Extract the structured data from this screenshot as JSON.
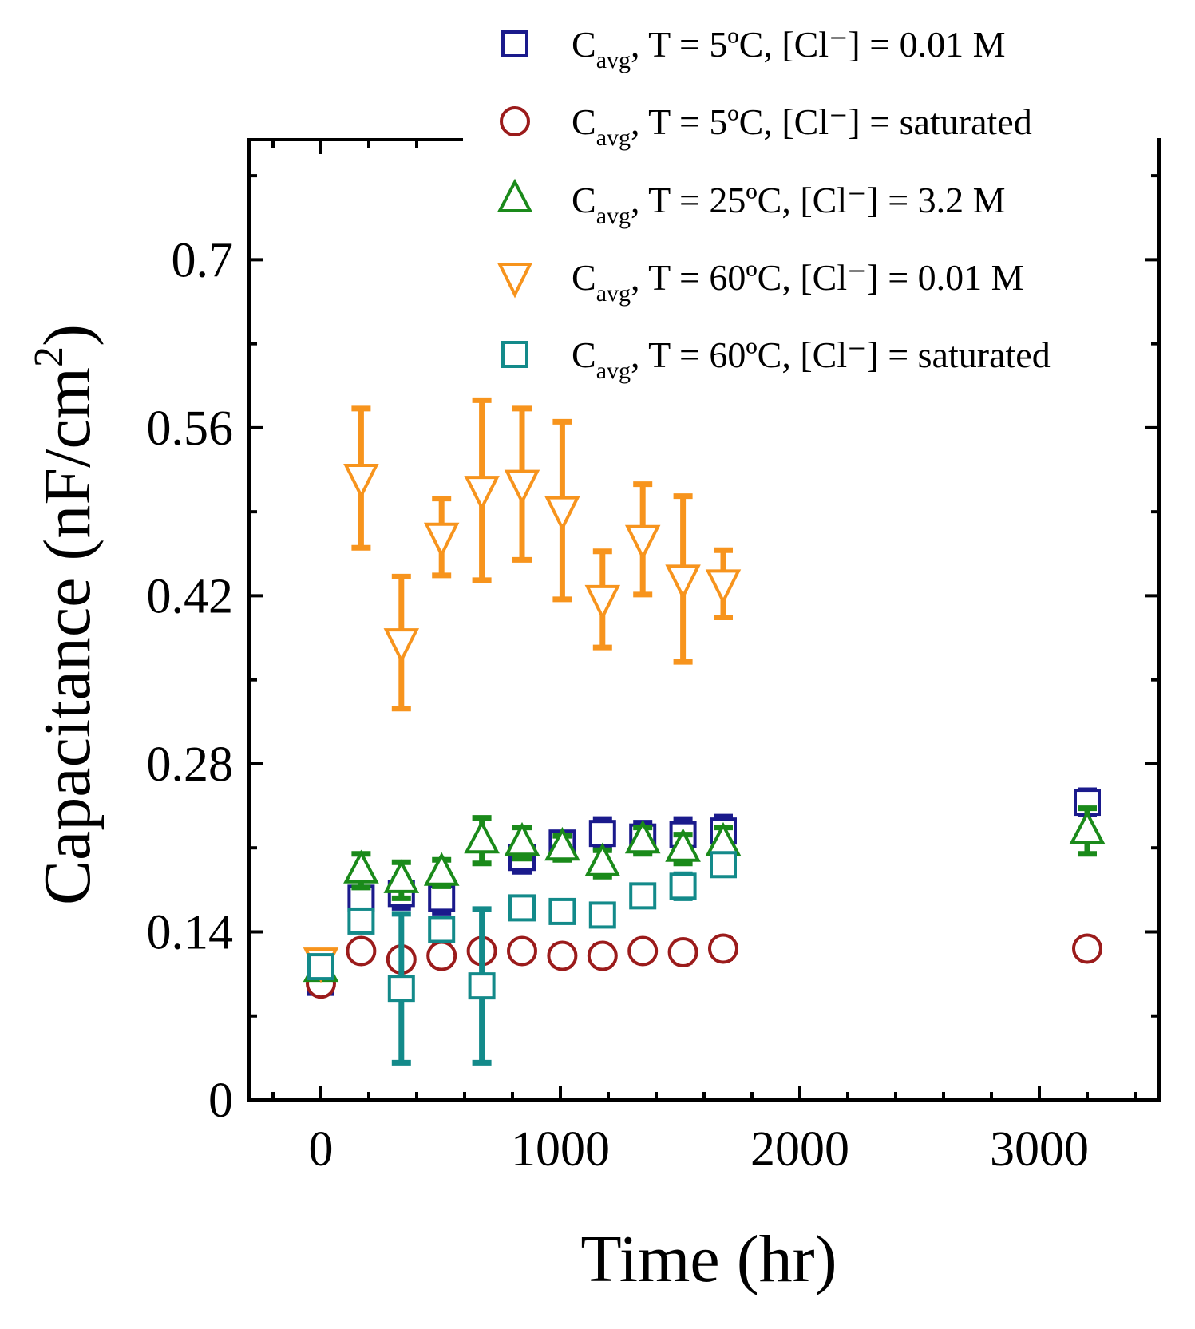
{
  "chart_data": {
    "type": "scatter",
    "xlabel": "Time (hr)",
    "ylabel": "Capacitance (nF/cm²)",
    "ylabel_parts": {
      "main": "Capacitance (nF/cm",
      "sup": "2",
      "end": ")"
    },
    "xlim": [
      -300,
      3500
    ],
    "ylim": [
      0,
      0.8
    ],
    "xticks": [
      0,
      1000,
      2000,
      3000
    ],
    "xtick_labels": [
      "0",
      "1000",
      "2000",
      "3000"
    ],
    "yticks": [
      0,
      0.14,
      0.28,
      0.42,
      0.56,
      0.7
    ],
    "ytick_labels": [
      "0",
      "0.14",
      "0.28",
      "0.42",
      "0.56",
      "0.7"
    ],
    "grid": false,
    "legend_position": "top-right",
    "series": [
      {
        "name": "Cavg, T = 5ºC, [Cl⁻] = 0.01 M",
        "legend": {
          "pre": "C",
          "sub": "avg",
          "post": ", T = 5ºC, [Cl⁻] = 0.01 M"
        },
        "marker": "square",
        "color": "#1a1a8c",
        "x": [
          0,
          168,
          336,
          504,
          840,
          1008,
          1176,
          1344,
          1512,
          1680,
          3200
        ],
        "y": [
          0.098,
          0.168,
          0.172,
          0.168,
          0.202,
          0.214,
          0.222,
          0.219,
          0.221,
          0.224,
          0.248
        ],
        "err": [
          0.007,
          0.008,
          0.012,
          0.012,
          0.012,
          0.007,
          0.012,
          0.012,
          0.013,
          0.012,
          0.01
        ]
      },
      {
        "name": "Cavg, T = 5ºC, [Cl⁻] = saturated",
        "legend": {
          "pre": "C",
          "sub": "avg",
          "post": ", T = 5ºC, [Cl⁻] = saturated"
        },
        "marker": "circle",
        "color": "#9b1b1b",
        "x": [
          0,
          168,
          336,
          504,
          672,
          840,
          1008,
          1176,
          1344,
          1512,
          1680,
          3200
        ],
        "y": [
          0.097,
          0.124,
          0.117,
          0.12,
          0.124,
          0.124,
          0.12,
          0.12,
          0.124,
          0.123,
          0.126,
          0.126
        ],
        "err": [
          0.006,
          0.008,
          0.008,
          0.008,
          0.008,
          0.008,
          0.008,
          0.008,
          0.008,
          0.008,
          0.008,
          0.006
        ]
      },
      {
        "name": "Cavg, T = 25ºC, [Cl⁻] = 3.2 M",
        "legend": {
          "pre": "C",
          "sub": "avg",
          "post": ", T = 25ºC, [Cl⁻] = 3.2 M"
        },
        "marker": "triangle-up",
        "color": "#1a8a1a",
        "x": [
          0,
          168,
          336,
          504,
          672,
          840,
          1008,
          1176,
          1344,
          1512,
          1680,
          3200
        ],
        "y": [
          0.109,
          0.191,
          0.183,
          0.189,
          0.216,
          0.214,
          0.21,
          0.197,
          0.216,
          0.209,
          0.214,
          0.224
        ],
        "err": [
          0.007,
          0.014,
          0.015,
          0.011,
          0.019,
          0.013,
          0.01,
          0.011,
          0.011,
          0.012,
          0.013,
          0.019
        ]
      },
      {
        "name": "Cavg, T = 60ºC, [Cl⁻] = 0.01 M",
        "legend": {
          "pre": "C",
          "sub": "avg",
          "post": ", T = 60ºC, [Cl⁻] = 0.01 M"
        },
        "marker": "triangle-down",
        "color": "#f7941d",
        "x": [
          0,
          168,
          336,
          504,
          672,
          840,
          1008,
          1176,
          1344,
          1512,
          1680
        ],
        "y": [
          0.115,
          0.518,
          0.381,
          0.469,
          0.508,
          0.513,
          0.491,
          0.417,
          0.467,
          0.434,
          0.43
        ],
        "err": [
          0.005,
          0.058,
          0.055,
          0.032,
          0.075,
          0.063,
          0.074,
          0.04,
          0.046,
          0.069,
          0.028
        ]
      },
      {
        "name": "Cavg, T = 60ºC, [Cl⁻] = saturated",
        "legend": {
          "pre": "C",
          "sub": "avg",
          "post": ", T = 60ºC, [Cl⁻] = saturated"
        },
        "marker": "square",
        "color": "#138a8a",
        "x": [
          0,
          168,
          336,
          504,
          672,
          840,
          1008,
          1176,
          1344,
          1512,
          1680
        ],
        "y": [
          0.111,
          0.149,
          0.093,
          0.142,
          0.095,
          0.16,
          0.157,
          0.154,
          0.17,
          0.178,
          0.196
        ],
        "err": [
          0.007,
          0.008,
          0.062,
          0.008,
          0.064,
          0.007,
          0.007,
          0.008,
          0.008,
          0.01,
          0.006
        ]
      }
    ]
  }
}
